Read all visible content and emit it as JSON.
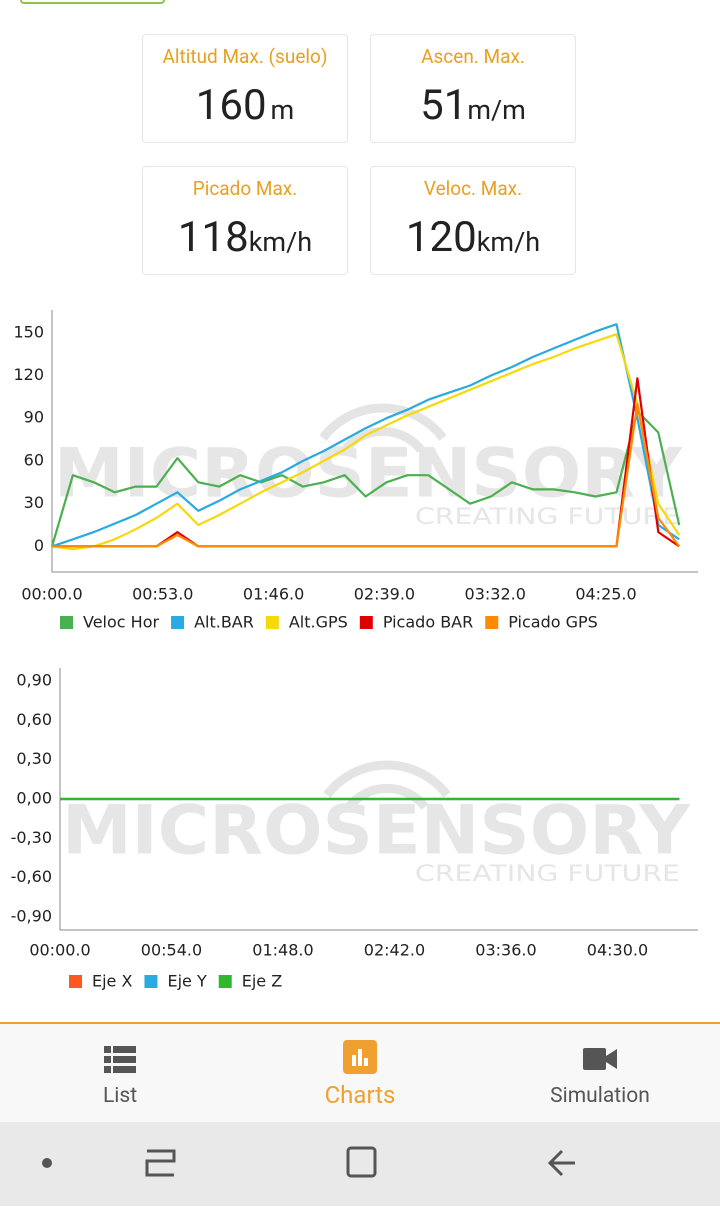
{
  "cards": [
    {
      "label": "Altitud Max. (suelo)",
      "value": 160,
      "unit": "m"
    },
    {
      "label": "Ascen. Max.",
      "value": 51,
      "unit": "m/m"
    },
    {
      "label": "Picado Max.",
      "value": 118,
      "unit": "km/h"
    },
    {
      "label": "Veloc. Max.",
      "value": 120,
      "unit": "km/h"
    }
  ],
  "chart_data": [
    {
      "type": "line",
      "watermark": "MICROSENSORY",
      "watermark_sub": "CREATING FUTURE",
      "grid": false,
      "x": [
        0,
        10,
        20,
        30,
        40,
        50,
        60,
        70,
        80,
        90,
        100,
        110,
        120,
        130,
        140,
        150,
        160,
        170,
        180,
        190,
        200,
        210,
        220,
        230,
        240,
        250,
        260,
        270,
        280,
        290,
        300
      ],
      "xlim": [
        0,
        309
      ],
      "xticks": [
        {
          "value": 0,
          "label": "00:00.0"
        },
        {
          "value": 53,
          "label": "00:53.0"
        },
        {
          "value": 106,
          "label": "01:46.0"
        },
        {
          "value": 159,
          "label": "02:39.0"
        },
        {
          "value": 212,
          "label": "03:32.0"
        },
        {
          "value": 265,
          "label": "04:25.0"
        }
      ],
      "ylim": [
        -18,
        166
      ],
      "yticks": [
        0,
        30,
        60,
        90,
        120,
        150
      ],
      "series": [
        {
          "name": "Veloc Hor",
          "color": "#4caf50",
          "values": [
            0,
            50,
            45,
            38,
            42,
            42,
            62,
            45,
            42,
            50,
            45,
            50,
            42,
            45,
            50,
            35,
            45,
            50,
            50,
            40,
            30,
            35,
            45,
            40,
            40,
            38,
            35,
            38,
            95,
            80,
            15
          ]
        },
        {
          "name": "Alt.BAR",
          "color": "#29aae1",
          "values": [
            0,
            5,
            10,
            16,
            22,
            30,
            38,
            25,
            32,
            40,
            46,
            52,
            60,
            67,
            75,
            83,
            90,
            96,
            103,
            108,
            113,
            120,
            126,
            133,
            139,
            145,
            151,
            156,
            90,
            15,
            5
          ]
        },
        {
          "name": "Alt.GPS",
          "color": "#f5d90a",
          "values": [
            0,
            -2,
            0,
            5,
            12,
            20,
            30,
            15,
            22,
            30,
            38,
            45,
            52,
            60,
            68,
            78,
            85,
            92,
            98,
            104,
            110,
            116,
            122,
            128,
            133,
            139,
            144,
            149,
            100,
            30,
            8
          ]
        },
        {
          "name": "Picado BAR",
          "color": "#e00000",
          "values": [
            0,
            0,
            0,
            0,
            0,
            0,
            10,
            0,
            0,
            0,
            0,
            0,
            0,
            0,
            0,
            0,
            0,
            0,
            0,
            0,
            0,
            0,
            0,
            0,
            0,
            0,
            0,
            0,
            118,
            10,
            0
          ]
        },
        {
          "name": "Picado GPS",
          "color": "#ff8c00",
          "values": [
            0,
            0,
            0,
            0,
            0,
            0,
            8,
            0,
            0,
            0,
            0,
            0,
            0,
            0,
            0,
            0,
            0,
            0,
            0,
            0,
            0,
            0,
            0,
            0,
            0,
            0,
            0,
            0,
            100,
            20,
            0
          ]
        }
      ]
    },
    {
      "type": "line",
      "watermark": "MICROSENSORY",
      "watermark_sub": "CREATING FUTURE",
      "grid": false,
      "x": [
        0,
        10,
        20,
        30,
        40,
        50,
        60,
        70,
        80,
        90,
        100,
        110,
        120,
        130,
        140,
        150,
        160,
        170,
        180,
        190,
        200,
        210,
        220,
        230,
        240,
        250,
        260,
        270,
        280,
        290,
        300
      ],
      "xlim": [
        0,
        309
      ],
      "xticks": [
        {
          "value": 0,
          "label": "00:00.0"
        },
        {
          "value": 54,
          "label": "00:54.0"
        },
        {
          "value": 108,
          "label": "01:48.0"
        },
        {
          "value": 162,
          "label": "02:42.0"
        },
        {
          "value": 216,
          "label": "03:36.0"
        },
        {
          "value": 270,
          "label": "04:30.0"
        }
      ],
      "ylim": [
        -1.0,
        1.0
      ],
      "yticks": [
        {
          "value": 0.9,
          "label": "0,90"
        },
        {
          "value": 0.6,
          "label": "0,60"
        },
        {
          "value": 0.3,
          "label": "0,30"
        },
        {
          "value": 0,
          "label": "0,00"
        },
        {
          "value": -0.3,
          "label": "-0,30"
        },
        {
          "value": -0.6,
          "label": "-0,60"
        },
        {
          "value": -0.9,
          "label": "-0,90"
        }
      ],
      "series": [
        {
          "name": "Eje X",
          "color": "#ff5722",
          "values": [
            0,
            0,
            0,
            0,
            0,
            0,
            0,
            0,
            0,
            0,
            0,
            0,
            0,
            0,
            0,
            0,
            0,
            0,
            0,
            0,
            0,
            0,
            0,
            0,
            0,
            0,
            0,
            0,
            0,
            0,
            0
          ]
        },
        {
          "name": "Eje Y",
          "color": "#29aae1",
          "values": [
            0,
            0,
            0,
            0,
            0,
            0,
            0,
            0,
            0,
            0,
            0,
            0,
            0,
            0,
            0,
            0,
            0,
            0,
            0,
            0,
            0,
            0,
            0,
            0,
            0,
            0,
            0,
            0,
            0,
            0,
            0
          ]
        },
        {
          "name": "Eje Z",
          "color": "#2db82d",
          "values": [
            0,
            0,
            0,
            0,
            0,
            0,
            0,
            0,
            0,
            0,
            0,
            0,
            0,
            0,
            0,
            0,
            0,
            0,
            0,
            0,
            0,
            0,
            0,
            0,
            0,
            0,
            0,
            0,
            0,
            0,
            0
          ]
        }
      ]
    }
  ],
  "nav": {
    "items": [
      "List",
      "Charts",
      "Simulation"
    ],
    "active": 1
  }
}
